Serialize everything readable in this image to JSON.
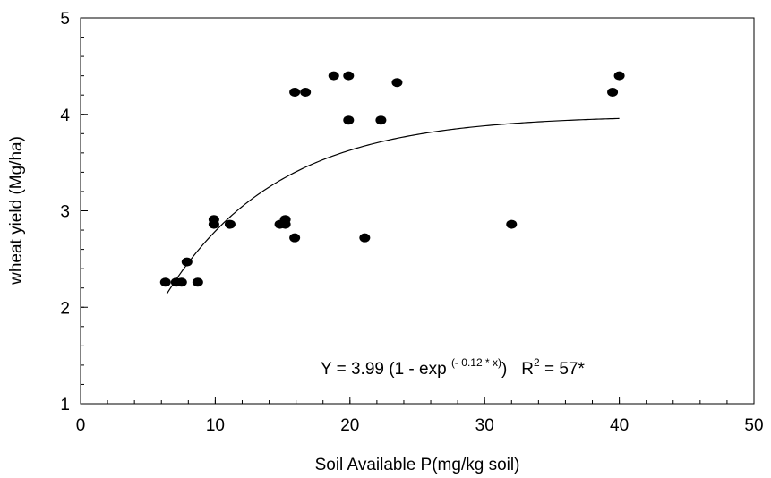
{
  "chart_data": {
    "type": "scatter",
    "xlabel": "Soil Available P(mg/kg soil)",
    "ylabel": "wheat yield (Mg/ha)",
    "x": [
      6.3,
      7.1,
      7.5,
      7.9,
      8.7,
      9.9,
      9.9,
      11.1,
      14.8,
      15.2,
      15.2,
      15.9,
      15.9,
      16.7,
      18.8,
      19.9,
      19.9,
      22.3,
      21.1,
      23.5,
      32.0,
      39.5,
      40.0
    ],
    "series": [
      {
        "color": "#000000",
        "values": [
          2.26,
          2.26,
          2.26,
          2.47,
          2.26,
          2.91,
          2.86,
          2.86,
          2.86,
          2.91,
          2.86,
          2.72,
          4.23,
          4.23,
          4.4,
          4.4,
          3.94,
          3.94,
          2.72,
          4.33,
          2.86,
          4.23,
          4.4
        ]
      }
    ],
    "fit": {
      "a": 3.99,
      "k": 0.12,
      "x_from": 6.4,
      "x_to": 40
    },
    "annotation": {
      "equation": [
        "Y = 3.99 (1 - exp ",
        "(- 0.12 * x)",
        ")"
      ],
      "r2": [
        "R",
        "2",
        " = 57*"
      ]
    },
    "xlim": [
      0,
      50
    ],
    "xticks": [
      0,
      10,
      20,
      30,
      40,
      50
    ],
    "x_minor_step": 2,
    "ylim": [
      1,
      5
    ],
    "yticks": [
      1,
      2,
      3,
      4,
      5
    ],
    "y_minor_step": 0.2
  }
}
